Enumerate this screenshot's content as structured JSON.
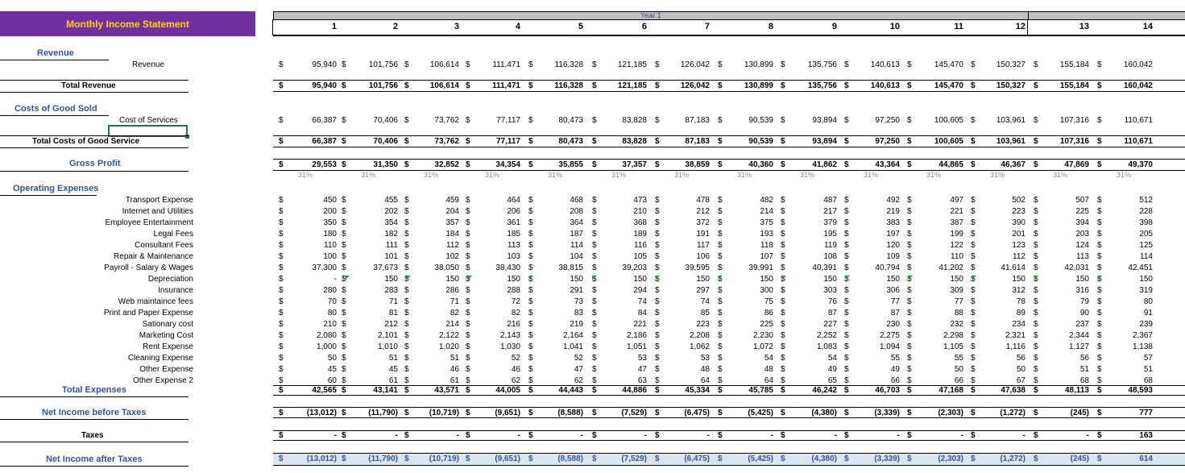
{
  "title": "Monthly Income Statement",
  "year_label": "Year 1",
  "months": [
    "1",
    "2",
    "3",
    "4",
    "5",
    "6",
    "7",
    "8",
    "9",
    "10",
    "11",
    "12",
    "13",
    "14"
  ],
  "currency": "$",
  "sections": {
    "revenue": "Revenue",
    "cogs": "Costs of Good Sold",
    "gross_profit": "Gross Profit",
    "opex": "Operating Expenses"
  },
  "rows": {
    "revenue": {
      "label": "Revenue",
      "values": [
        "95,940",
        "101,756",
        "106,614",
        "111,471",
        "116,328",
        "121,185",
        "126,042",
        "130,899",
        "135,756",
        "140,613",
        "145,470",
        "150,327",
        "155,184",
        "160,042"
      ]
    },
    "total_revenue": {
      "label": "Total Revenue",
      "values": [
        "95,940",
        "101,756",
        "106,614",
        "111,471",
        "116,328",
        "121,185",
        "126,042",
        "130,899",
        "135,756",
        "140,613",
        "145,470",
        "150,327",
        "155,184",
        "160,042"
      ]
    },
    "cost_of_services": {
      "label": "Cost of Services",
      "values": [
        "66,387",
        "70,406",
        "73,762",
        "77,117",
        "80,473",
        "83,828",
        "87,183",
        "90,539",
        "93,894",
        "97,250",
        "100,605",
        "103,961",
        "107,316",
        "110,671"
      ]
    },
    "total_cogs": {
      "label": "Total Costs of Good Service",
      "values": [
        "66,387",
        "70,406",
        "73,762",
        "77,117",
        "80,473",
        "83,828",
        "87,183",
        "90,539",
        "93,894",
        "97,250",
        "100,605",
        "103,961",
        "107,316",
        "110,671"
      ]
    },
    "gross_profit": {
      "values": [
        "29,553",
        "31,350",
        "32,852",
        "34,354",
        "35,855",
        "37,357",
        "38,859",
        "40,360",
        "41,862",
        "43,364",
        "44,865",
        "46,367",
        "47,869",
        "49,370"
      ]
    },
    "gross_margin": {
      "values": [
        "31%",
        "31%",
        "31%",
        "31%",
        "31%",
        "31%",
        "31%",
        "31%",
        "31%",
        "31%",
        "31%",
        "31%",
        "31%",
        "31%"
      ]
    },
    "expenses": [
      {
        "label": "Transport Expense",
        "values": [
          "450",
          "455",
          "459",
          "464",
          "468",
          "473",
          "478",
          "482",
          "487",
          "492",
          "497",
          "502",
          "507",
          "512"
        ]
      },
      {
        "label": "Internet and Utilities",
        "values": [
          "200",
          "202",
          "204",
          "206",
          "208",
          "210",
          "212",
          "214",
          "217",
          "219",
          "221",
          "223",
          "225",
          "228"
        ]
      },
      {
        "label": "Employee Entertainment",
        "values": [
          "350",
          "354",
          "357",
          "361",
          "364",
          "368",
          "372",
          "375",
          "379",
          "383",
          "387",
          "390",
          "394",
          "398"
        ]
      },
      {
        "label": "Legal Fees",
        "values": [
          "180",
          "182",
          "184",
          "185",
          "187",
          "189",
          "191",
          "193",
          "195",
          "197",
          "199",
          "201",
          "203",
          "205"
        ]
      },
      {
        "label": "Consultant Fees",
        "values": [
          "110",
          "111",
          "112",
          "113",
          "114",
          "116",
          "117",
          "118",
          "119",
          "120",
          "122",
          "123",
          "124",
          "125"
        ]
      },
      {
        "label": "Repair & Maintenance",
        "values": [
          "100",
          "101",
          "102",
          "103",
          "104",
          "105",
          "106",
          "107",
          "108",
          "109",
          "110",
          "112",
          "113",
          "114"
        ]
      },
      {
        "label": "Payroll - Salary & Wages",
        "values": [
          "37,300",
          "37,673",
          "38,050",
          "38,430",
          "38,815",
          "39,203",
          "39,595",
          "39,991",
          "40,391",
          "40,794",
          "41,202",
          "41,614",
          "42,031",
          "42,451"
        ]
      },
      {
        "label": "Depreciation",
        "values": [
          "-",
          "150",
          "150",
          "150",
          "150",
          "150",
          "150",
          "150",
          "150",
          "150",
          "150",
          "150",
          "150",
          "150"
        ]
      },
      {
        "label": "Insurance",
        "values": [
          "280",
          "283",
          "286",
          "288",
          "291",
          "294",
          "297",
          "300",
          "303",
          "306",
          "309",
          "312",
          "316",
          "319"
        ]
      },
      {
        "label": "Web maintaince fees",
        "values": [
          "70",
          "71",
          "71",
          "72",
          "73",
          "74",
          "74",
          "75",
          "76",
          "77",
          "77",
          "78",
          "79",
          "80"
        ]
      },
      {
        "label": "Print and Paper Expense",
        "values": [
          "80",
          "81",
          "82",
          "82",
          "83",
          "84",
          "85",
          "86",
          "87",
          "87",
          "88",
          "89",
          "90",
          "91"
        ]
      },
      {
        "label": "Sationary cost",
        "values": [
          "210",
          "212",
          "214",
          "216",
          "219",
          "221",
          "223",
          "225",
          "227",
          "230",
          "232",
          "234",
          "237",
          "239"
        ]
      },
      {
        "label": "Marketing Cost",
        "values": [
          "2,080",
          "2,101",
          "2,122",
          "2,143",
          "2,164",
          "2,186",
          "2,208",
          "2,230",
          "2,252",
          "2,275",
          "2,298",
          "2,321",
          "2,344",
          "2,367"
        ]
      },
      {
        "label": "Rent Expense",
        "values": [
          "1,000",
          "1,010",
          "1,020",
          "1,030",
          "1,041",
          "1,051",
          "1,062",
          "1,072",
          "1,083",
          "1,094",
          "1,105",
          "1,116",
          "1,127",
          "1,138"
        ]
      },
      {
        "label": "Cleaning Expense",
        "values": [
          "50",
          "51",
          "51",
          "52",
          "52",
          "53",
          "53",
          "54",
          "54",
          "55",
          "55",
          "56",
          "56",
          "57"
        ]
      },
      {
        "label": "Other Expense",
        "values": [
          "45",
          "45",
          "46",
          "46",
          "47",
          "47",
          "48",
          "48",
          "49",
          "49",
          "50",
          "50",
          "51",
          "51"
        ]
      },
      {
        "label": "Other Expense 2",
        "values": [
          "60",
          "61",
          "61",
          "62",
          "62",
          "63",
          "64",
          "64",
          "65",
          "66",
          "66",
          "67",
          "68",
          "68"
        ]
      }
    ],
    "total_expenses": {
      "label": "Total Expenses",
      "values": [
        "42,565",
        "43,141",
        "43,571",
        "44,005",
        "44,443",
        "44,886",
        "45,334",
        "45,785",
        "46,242",
        "46,703",
        "47,168",
        "47,638",
        "48,113",
        "48,593"
      ]
    },
    "net_before_taxes": {
      "label": "Net Income before Taxes",
      "values": [
        "(13,012)",
        "(11,790)",
        "(10,719)",
        "(9,651)",
        "(8,588)",
        "(7,529)",
        "(6,475)",
        "(5,425)",
        "(4,380)",
        "(3,339)",
        "(2,303)",
        "(1,272)",
        "(245)",
        "777"
      ]
    },
    "taxes": {
      "label": "Taxes",
      "values": [
        "-",
        "-",
        "-",
        "-",
        "-",
        "-",
        "-",
        "-",
        "-",
        "-",
        "-",
        "-",
        "-",
        "163"
      ]
    },
    "net_after_taxes": {
      "label": "Net Income after Taxes",
      "values": [
        "(13,012)",
        "(11,790)",
        "(10,719)",
        "(9,651)",
        "(8,588)",
        "(7,529)",
        "(6,475)",
        "(5,425)",
        "(4,380)",
        "(3,339)",
        "(2,303)",
        "(1,272)",
        "(245)",
        "614"
      ]
    }
  }
}
